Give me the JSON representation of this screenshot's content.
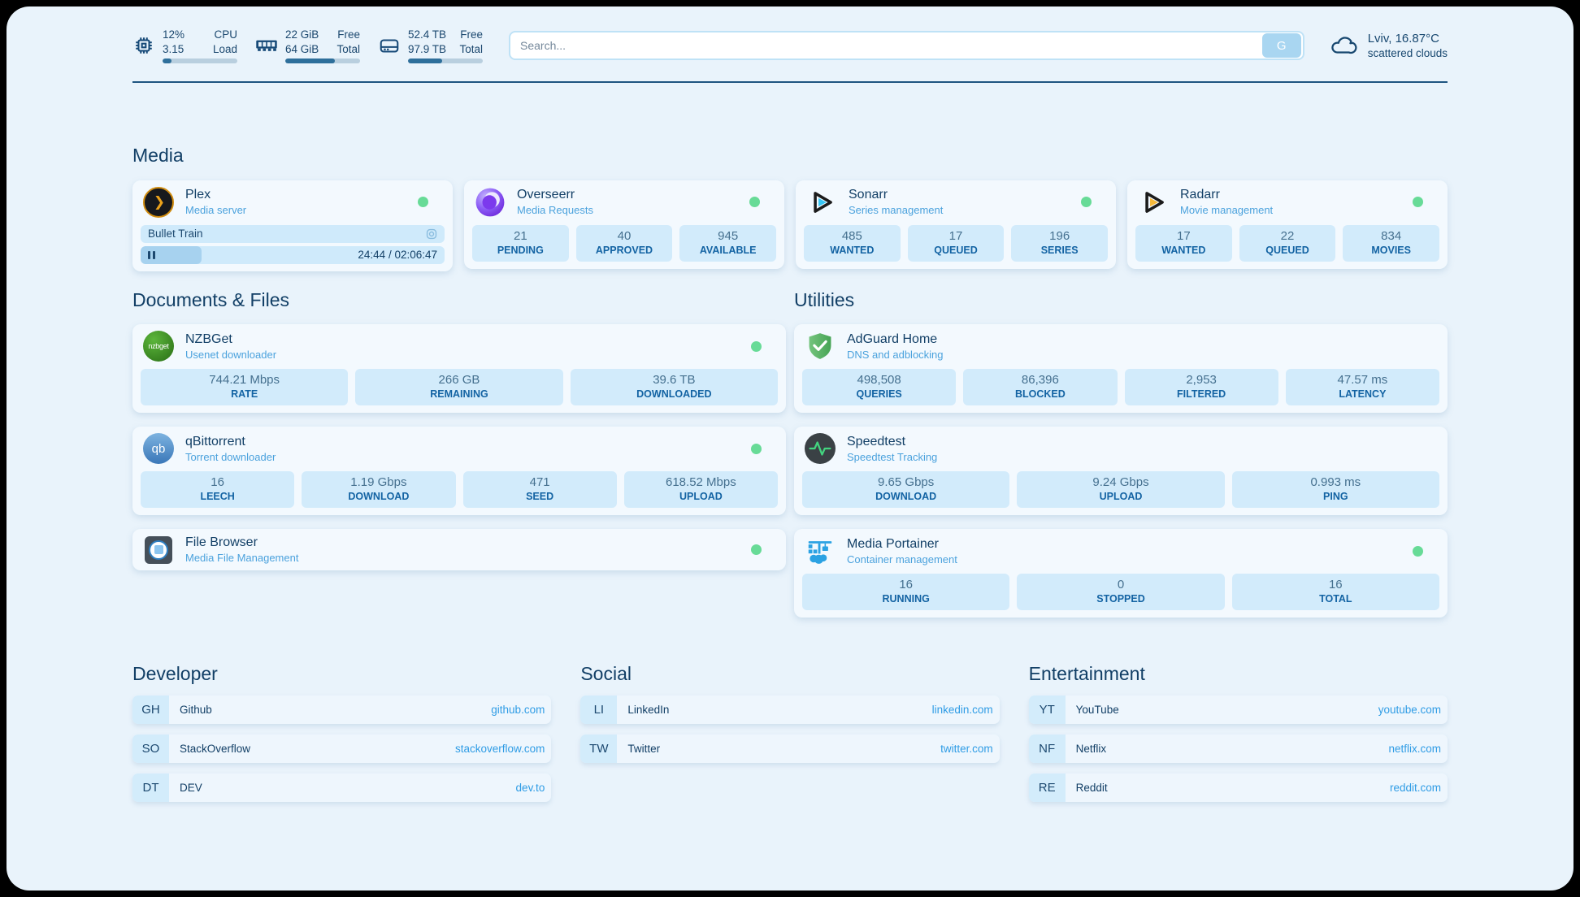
{
  "theme": {
    "background": "#e9f3fb",
    "card": "#f3f9fe",
    "tile": "#d2ebfb",
    "navy": "#17476f",
    "subtitle_blue": "#4ba2dd",
    "link_blue": "#2f9ce5",
    "status_green": "#67db97",
    "bar_fill": "#2e6f9b"
  },
  "topbar": {
    "monitors": [
      {
        "icon": "cpu-icon",
        "value1": "12%",
        "value2": "3.15",
        "label1": "CPU",
        "label2": "Load",
        "progress": 12
      },
      {
        "icon": "ram-icon",
        "value1": "22 GiB",
        "value2": "64 GiB",
        "label1": "Free",
        "label2": "Total",
        "progress": 66
      },
      {
        "icon": "disk-icon",
        "value1": "52.4 TB",
        "value2": "97.9 TB",
        "label1": "Free",
        "label2": "Total",
        "progress": 46
      }
    ],
    "search": {
      "placeholder": "Search...",
      "button_label": "G"
    },
    "weather": {
      "location_temp": "Lviv, 16.87°C",
      "condition": "scattered clouds"
    }
  },
  "sections": {
    "media": {
      "title": "Media",
      "cards": {
        "plex": {
          "name": "Plex",
          "desc": "Media server",
          "status": "online",
          "media": {
            "title": "Bullet Train",
            "time": "24:44 / 02:06:47",
            "progress": 20
          }
        },
        "overseerr": {
          "name": "Overseerr",
          "desc": "Media Requests",
          "status": "online",
          "stats": [
            {
              "value": "21",
              "label": "PENDING"
            },
            {
              "value": "40",
              "label": "APPROVED"
            },
            {
              "value": "945",
              "label": "AVAILABLE"
            }
          ]
        },
        "sonarr": {
          "name": "Sonarr",
          "desc": "Series management",
          "status": "online",
          "stats": [
            {
              "value": "485",
              "label": "WANTED"
            },
            {
              "value": "17",
              "label": "QUEUED"
            },
            {
              "value": "196",
              "label": "SERIES"
            }
          ]
        },
        "radarr": {
          "name": "Radarr",
          "desc": "Movie management",
          "status": "online",
          "stats": [
            {
              "value": "17",
              "label": "WANTED"
            },
            {
              "value": "22",
              "label": "QUEUED"
            },
            {
              "value": "834",
              "label": "MOVIES"
            }
          ]
        }
      }
    },
    "documents": {
      "title": "Documents & Files",
      "apps": {
        "nzbget": {
          "name": "NZBGet",
          "desc": "Usenet downloader",
          "status": "online",
          "logo_text": "nzbget",
          "stats": [
            {
              "value": "744.21 Mbps",
              "label": "RATE"
            },
            {
              "value": "266 GB",
              "label": "REMAINING"
            },
            {
              "value": "39.6 TB",
              "label": "DOWNLOADED"
            }
          ]
        },
        "qbittorrent": {
          "name": "qBittorrent",
          "desc": "Torrent downloader",
          "status": "online",
          "logo_text": "qb",
          "stats": [
            {
              "value": "16",
              "label": "LEECH"
            },
            {
              "value": "1.19 Gbps",
              "label": "DOWNLOAD"
            },
            {
              "value": "471",
              "label": "SEED"
            },
            {
              "value": "618.52 Mbps",
              "label": "UPLOAD"
            }
          ]
        },
        "filebrowser": {
          "name": "File Browser",
          "desc": "Media File Management",
          "status": "online"
        }
      }
    },
    "utilities": {
      "title": "Utilities",
      "apps": {
        "adguard": {
          "name": "AdGuard Home",
          "desc": "DNS and adblocking",
          "stats": [
            {
              "value": "498,508",
              "label": "QUERIES"
            },
            {
              "value": "86,396",
              "label": "BLOCKED"
            },
            {
              "value": "2,953",
              "label": "FILTERED"
            },
            {
              "value": "47.57 ms",
              "label": "LATENCY"
            }
          ]
        },
        "speedtest": {
          "name": "Speedtest",
          "desc": "Speedtest Tracking",
          "stats": [
            {
              "value": "9.65 Gbps",
              "label": "DOWNLOAD"
            },
            {
              "value": "9.24 Gbps",
              "label": "UPLOAD"
            },
            {
              "value": "0.993 ms",
              "label": "PING"
            }
          ]
        },
        "portainer": {
          "name": "Media Portainer",
          "desc": "Container management",
          "status": "online",
          "stats": [
            {
              "value": "16",
              "label": "RUNNING"
            },
            {
              "value": "0",
              "label": "STOPPED"
            },
            {
              "value": "16",
              "label": "TOTAL"
            }
          ]
        }
      }
    }
  },
  "bookmarks": [
    {
      "title": "Developer",
      "links": [
        {
          "abbr": "GH",
          "name": "Github",
          "url": "github.com"
        },
        {
          "abbr": "SO",
          "name": "StackOverflow",
          "url": "stackoverflow.com"
        },
        {
          "abbr": "DT",
          "name": "DEV",
          "url": "dev.to"
        }
      ]
    },
    {
      "title": "Social",
      "links": [
        {
          "abbr": "LI",
          "name": "LinkedIn",
          "url": "linkedin.com"
        },
        {
          "abbr": "TW",
          "name": "Twitter",
          "url": "twitter.com"
        }
      ]
    },
    {
      "title": "Entertainment",
      "links": [
        {
          "abbr": "YT",
          "name": "YouTube",
          "url": "youtube.com"
        },
        {
          "abbr": "NF",
          "name": "Netflix",
          "url": "netflix.com"
        },
        {
          "abbr": "RE",
          "name": "Reddit",
          "url": "reddit.com"
        }
      ]
    }
  ]
}
